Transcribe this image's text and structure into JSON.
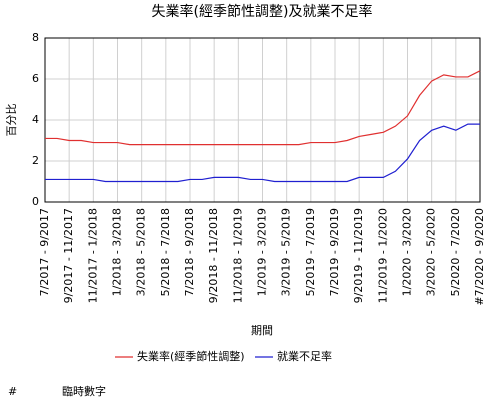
{
  "chart_data": {
    "type": "line",
    "title": "失業率(經季節性調整)及就業不足率",
    "y_label": "百分比",
    "x_label": "期間",
    "categories": [
      "7/2017 - 9/2017",
      null,
      "9/2017 - 11/2017",
      null,
      "11/2017 - 1/2018",
      null,
      "1/2018 - 3/2018",
      null,
      "3/2018 - 5/2018",
      null,
      "5/2018 - 7/2018",
      null,
      "7/2018 - 9/2018",
      null,
      "9/2018 - 11/2018",
      null,
      "11/2018 - 1/2019",
      null,
      "1/2019 - 3/2019",
      null,
      "3/2019 - 5/2019",
      null,
      "5/2019 - 7/2019",
      null,
      "7/2019 - 9/2019",
      null,
      "9/2019 - 11/2019",
      null,
      "11/2019 - 1/2020",
      null,
      "1/2020 - 3/2020",
      null,
      "3/2020 - 5/2020",
      null,
      "5/2020 - 7/2020",
      null,
      "#7/2020 - 9/2020"
    ],
    "series": [
      {
        "name": "失業率(經季節性調整)",
        "color": "#e03030",
        "values": [
          3.1,
          3.1,
          3.0,
          3.0,
          2.9,
          2.9,
          2.9,
          2.8,
          2.8,
          2.8,
          2.8,
          2.8,
          2.8,
          2.8,
          2.8,
          2.8,
          2.8,
          2.8,
          2.8,
          2.8,
          2.8,
          2.8,
          2.9,
          2.9,
          2.9,
          3.0,
          3.2,
          3.3,
          3.4,
          3.7,
          4.2,
          5.2,
          5.9,
          6.2,
          6.1,
          6.1,
          6.4
        ]
      },
      {
        "name": "就業不足率",
        "color": "#2020d0",
        "values": [
          1.1,
          1.1,
          1.1,
          1.1,
          1.1,
          1.0,
          1.0,
          1.0,
          1.0,
          1.0,
          1.0,
          1.0,
          1.1,
          1.1,
          1.2,
          1.2,
          1.2,
          1.1,
          1.1,
          1.0,
          1.0,
          1.0,
          1.0,
          1.0,
          1.0,
          1.0,
          1.2,
          1.2,
          1.2,
          1.5,
          2.1,
          3.0,
          3.5,
          3.7,
          3.5,
          3.8,
          3.8
        ]
      }
    ],
    "ylim": [
      0,
      8
    ],
    "yticks": [
      0,
      2,
      4,
      6,
      8
    ],
    "grid": true,
    "footnote": {
      "symbol": "#",
      "text": "臨時數字"
    }
  }
}
